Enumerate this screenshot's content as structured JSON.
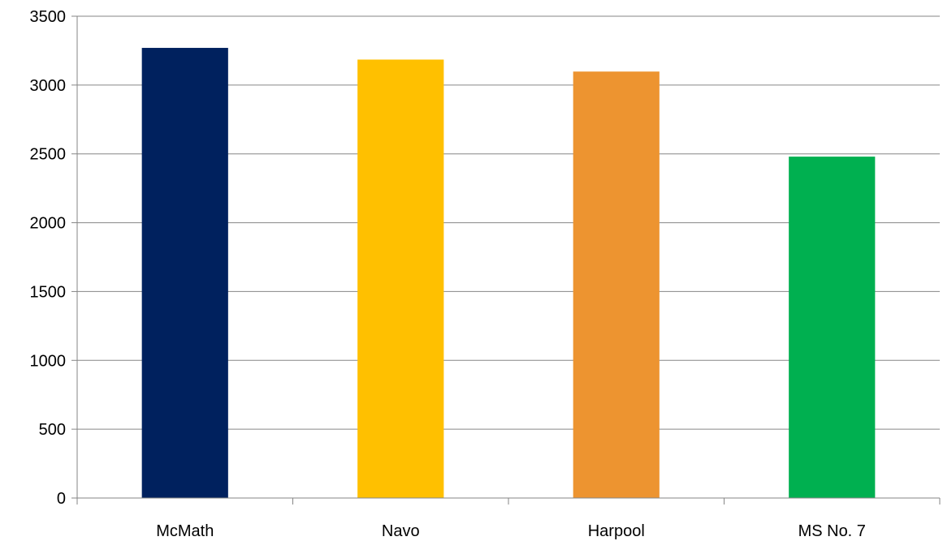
{
  "chart_data": {
    "type": "bar",
    "title": "",
    "xlabel": "",
    "ylabel": "",
    "categories": [
      "McMath",
      "Navo",
      "Harpool",
      "MS No. 7"
    ],
    "values": [
      3270,
      3185,
      3098,
      2480
    ],
    "colors": [
      "#00215e",
      "#ffc000",
      "#ed9430",
      "#00b050"
    ],
    "ylim": [
      0,
      3500
    ],
    "yticks": [
      0,
      500,
      1000,
      1500,
      2000,
      2500,
      3000,
      3500
    ],
    "grid": true,
    "legend": "none"
  }
}
